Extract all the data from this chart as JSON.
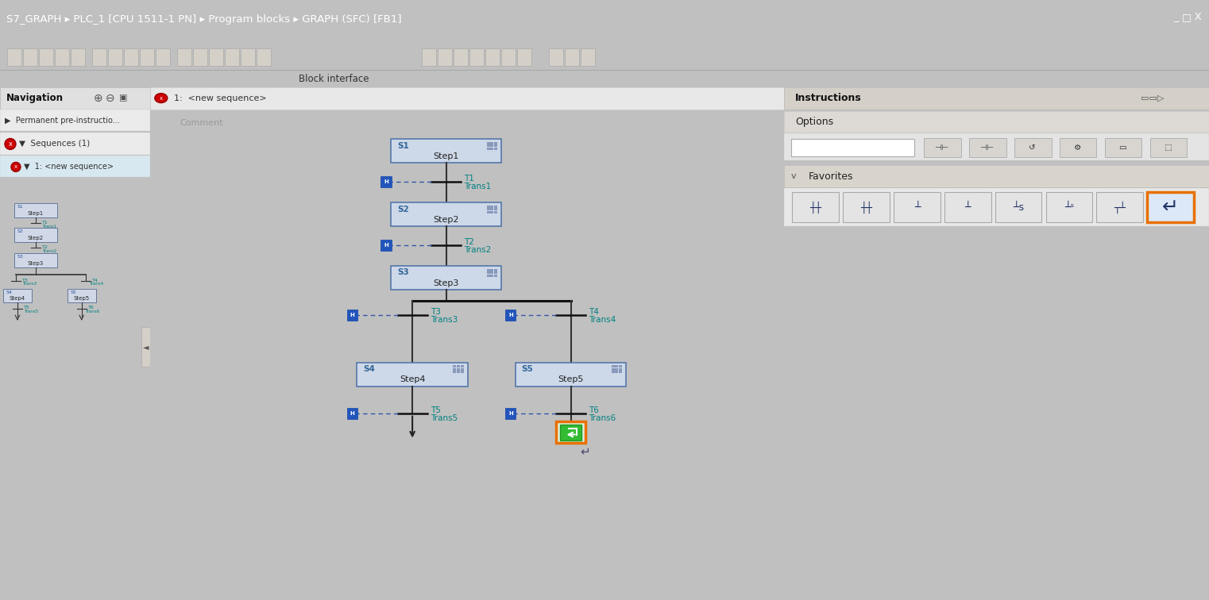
{
  "title_bar": "S7_GRAPH ▸ PLC_1 [CPU 1511-1 PN] ▸ Program blocks ▸ GRAPH (SFC) [FB1]",
  "title_bar_bg": "#2d3a4a",
  "title_bar_fg": "#ffffff",
  "block_interface_label": "Block interface",
  "nav_title": "Navigation",
  "seq_header": "1:  <new sequence>",
  "comment_label": "Comment",
  "teal_color": "#008080",
  "orange_color": "#e87000",
  "instructions_title": "Instructions",
  "options_label": "Options",
  "favorites_label": "Favorites",
  "trans_data": [
    {
      "id": "T1",
      "name": "Trans1"
    },
    {
      "id": "T2",
      "name": "Trans2"
    },
    {
      "id": "T3",
      "name": "Trans3"
    },
    {
      "id": "T4",
      "name": "Trans4"
    },
    {
      "id": "T5",
      "name": "Trans5"
    },
    {
      "id": "T6",
      "name": "Trans6"
    }
  ]
}
